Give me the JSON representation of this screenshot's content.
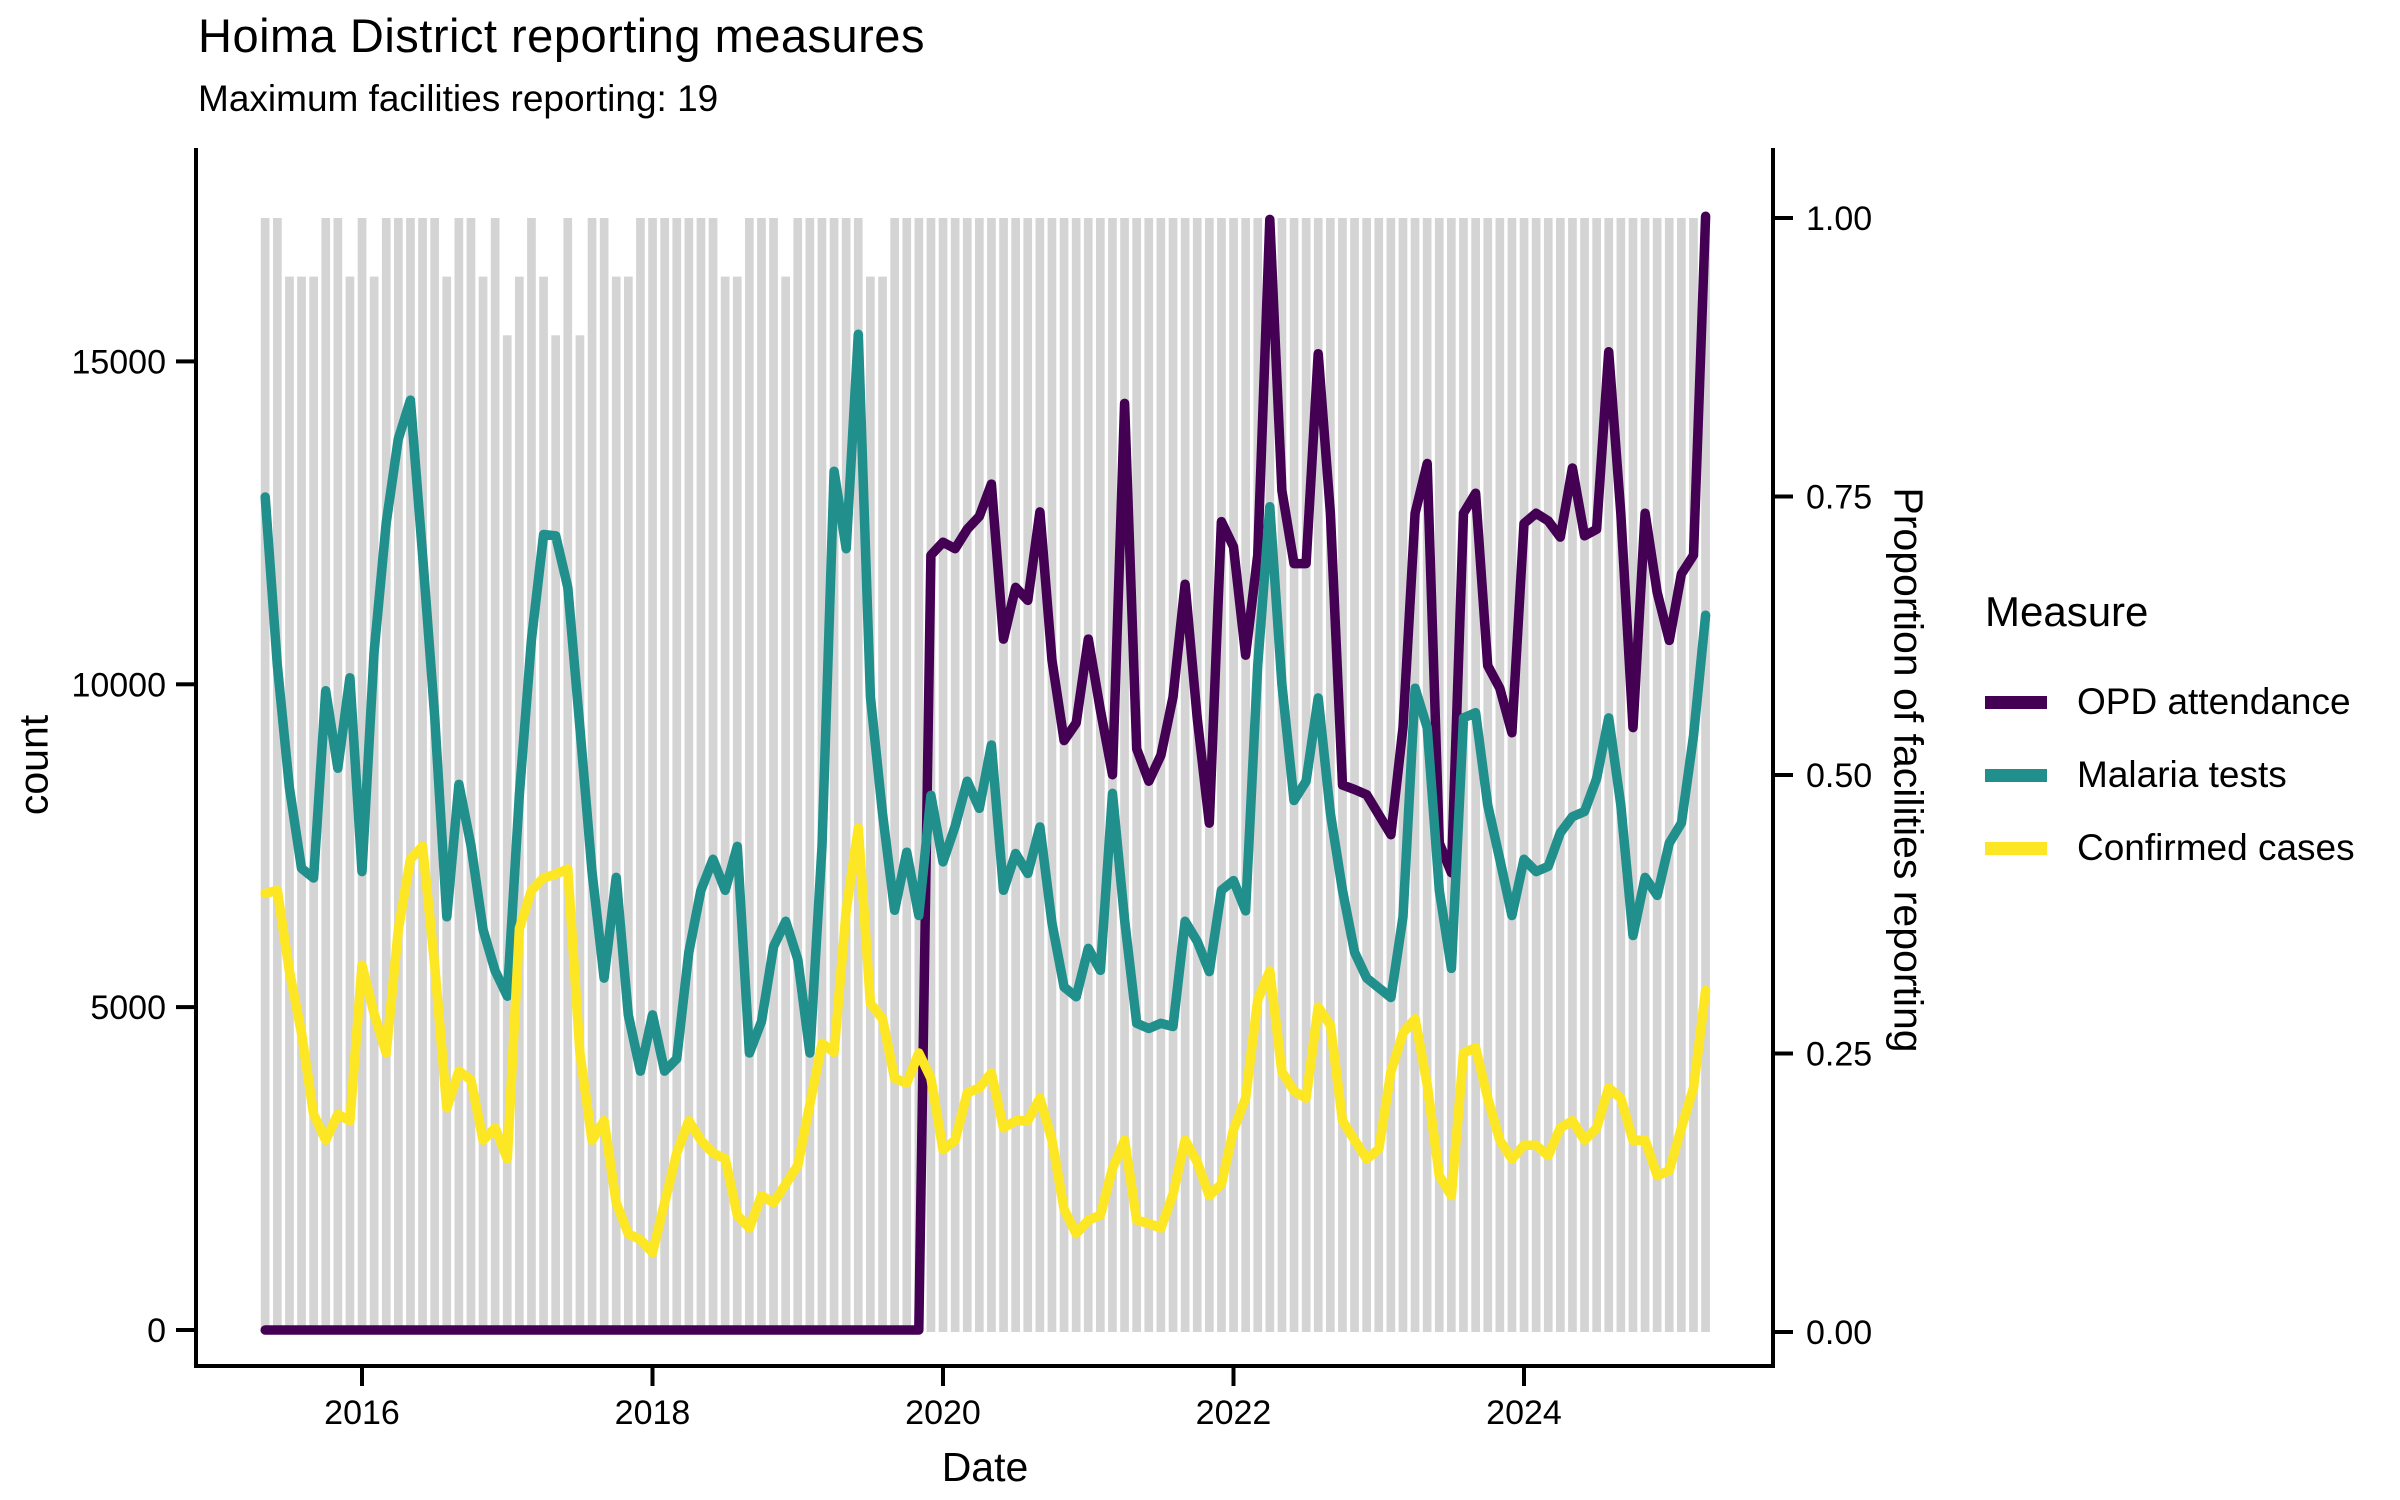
{
  "title": "Hoima District reporting measures",
  "subtitle": "Maximum facilities reporting: 19",
  "axes": {
    "x": {
      "label": "Date",
      "tick_labels": [
        "2016",
        "2018",
        "2020",
        "2022",
        "2024"
      ],
      "tick_month_index": [
        8,
        32,
        56,
        80,
        104
      ]
    },
    "y_left": {
      "label": "count",
      "tick_values": [
        0,
        5000,
        10000,
        15000
      ],
      "tick_labels": [
        "0",
        "5000",
        "10000",
        "15000"
      ]
    },
    "y_right": {
      "label": "Proportion of facilities reporting",
      "tick_values": [
        0,
        0.25,
        0.5,
        0.75,
        1
      ],
      "tick_labels": [
        "0.00",
        "0.25",
        "0.50",
        "0.75",
        "1.00"
      ]
    }
  },
  "legend": {
    "title": "Measure",
    "items": [
      {
        "label": "OPD attendance",
        "color": "#440154"
      },
      {
        "label": "Malaria tests",
        "color": "#21908C"
      },
      {
        "label": "Confirmed cases",
        "color": "#FDE725"
      }
    ]
  },
  "chart_data": {
    "type": "line",
    "title": "Hoima District reporting measures",
    "subtitle": "Maximum facilities reporting: 19",
    "xlabel": "Date",
    "ylabel_left": "count",
    "ylabel_right": "Proportion of facilities reporting",
    "x_start_month": "2015-05",
    "x_end_month": "2025-04",
    "months": [
      "2015-05",
      "2015-06",
      "2015-07",
      "2015-08",
      "2015-09",
      "2015-10",
      "2015-11",
      "2015-12",
      "2016-01",
      "2016-02",
      "2016-03",
      "2016-04",
      "2016-05",
      "2016-06",
      "2016-07",
      "2016-08",
      "2016-09",
      "2016-10",
      "2016-11",
      "2016-12",
      "2017-01",
      "2017-02",
      "2017-03",
      "2017-04",
      "2017-05",
      "2017-06",
      "2017-07",
      "2017-08",
      "2017-09",
      "2017-10",
      "2017-11",
      "2017-12",
      "2018-01",
      "2018-02",
      "2018-03",
      "2018-04",
      "2018-05",
      "2018-06",
      "2018-07",
      "2018-08",
      "2018-09",
      "2018-10",
      "2018-11",
      "2018-12",
      "2019-01",
      "2019-02",
      "2019-03",
      "2019-04",
      "2019-05",
      "2019-06",
      "2019-07",
      "2019-08",
      "2019-09",
      "2019-10",
      "2019-11",
      "2019-12",
      "2020-01",
      "2020-02",
      "2020-03",
      "2020-04",
      "2020-05",
      "2020-06",
      "2020-07",
      "2020-08",
      "2020-09",
      "2020-10",
      "2020-11",
      "2020-12",
      "2021-01",
      "2021-02",
      "2021-03",
      "2021-04",
      "2021-05",
      "2021-06",
      "2021-07",
      "2021-08",
      "2021-09",
      "2021-10",
      "2021-11",
      "2021-12",
      "2022-01",
      "2022-02",
      "2022-03",
      "2022-04",
      "2022-05",
      "2022-06",
      "2022-07",
      "2022-08",
      "2022-09",
      "2022-10",
      "2022-11",
      "2022-12",
      "2023-01",
      "2023-02",
      "2023-03",
      "2023-04",
      "2023-05",
      "2023-06",
      "2023-07",
      "2023-08",
      "2023-09",
      "2023-10",
      "2023-11",
      "2023-12",
      "2024-01",
      "2024-02",
      "2024-03",
      "2024-04",
      "2024-05",
      "2024-06",
      "2024-07",
      "2024-08",
      "2024-09",
      "2024-10",
      "2024-11",
      "2024-12",
      "2025-01",
      "2025-02",
      "2025-03",
      "2025-04"
    ],
    "max_facilities": 19,
    "bar_color": "#D4D4D4",
    "facilities_reporting": [
      19,
      19,
      18,
      18,
      18,
      19,
      19,
      18,
      19,
      18,
      19,
      19,
      19,
      19,
      19,
      18,
      19,
      19,
      18,
      19,
      17,
      18,
      19,
      18,
      17,
      19,
      17,
      19,
      19,
      18,
      18,
      19,
      19,
      19,
      19,
      19,
      19,
      19,
      18,
      18,
      19,
      19,
      19,
      18,
      19,
      19,
      19,
      19,
      19,
      19,
      18,
      18,
      19,
      19,
      19,
      19,
      19,
      19,
      19,
      19,
      19,
      19,
      19,
      19,
      19,
      19,
      19,
      19,
      19,
      19,
      19,
      19,
      19,
      19,
      19,
      19,
      19,
      19,
      19,
      19,
      19,
      19,
      19,
      19,
      19,
      19,
      19,
      19,
      19,
      19,
      19,
      19,
      19,
      19,
      19,
      19,
      19,
      19,
      19,
      19,
      19,
      19,
      19,
      19,
      19,
      19,
      19,
      19,
      19,
      19,
      19,
      19,
      19,
      19,
      19,
      19,
      19,
      19,
      19,
      19
    ],
    "series": [
      {
        "name": "OPD attendance",
        "color": "#440154",
        "y_axis": "count",
        "values": [
          0,
          0,
          0,
          0,
          0,
          0,
          0,
          0,
          0,
          0,
          0,
          0,
          0,
          0,
          0,
          0,
          0,
          0,
          0,
          0,
          0,
          0,
          0,
          0,
          0,
          0,
          0,
          0,
          0,
          0,
          0,
          0,
          0,
          0,
          0,
          0,
          0,
          0,
          0,
          0,
          0,
          0,
          0,
          0,
          0,
          0,
          0,
          0,
          0,
          0,
          0,
          0,
          0,
          0,
          0,
          12000,
          12200,
          12100,
          12400,
          12600,
          13100,
          10700,
          11500,
          11300,
          12670,
          10370,
          9130,
          9400,
          10700,
          9600,
          8600,
          14350,
          9000,
          8500,
          8900,
          9800,
          11550,
          9480,
          7850,
          12520,
          12130,
          10450,
          12000,
          17200,
          13000,
          11870,
          11870,
          15120,
          12650,
          8440,
          8370,
          8290,
          7980,
          7670,
          9330,
          12650,
          13420,
          7540,
          7080,
          12650,
          12960,
          10290,
          9940,
          9250,
          12490,
          12650,
          12530,
          12280,
          13350,
          12300,
          12400,
          15150,
          12650,
          9330,
          12650,
          11420,
          10680,
          11710,
          12000,
          17250
        ]
      },
      {
        "name": "Malaria tests",
        "color": "#21908C",
        "y_axis": "count",
        "values": [
          12900,
          10300,
          8400,
          7150,
          7000,
          9900,
          8700,
          10100,
          7100,
          10500,
          12500,
          13800,
          14400,
          12000,
          9500,
          6400,
          8450,
          7500,
          6200,
          5560,
          5170,
          8300,
          10700,
          12320,
          12300,
          11500,
          9330,
          7100,
          5450,
          7010,
          4880,
          4010,
          4880,
          4010,
          4200,
          5850,
          6810,
          7290,
          6810,
          7490,
          4290,
          4780,
          5940,
          6330,
          5740,
          4290,
          7490,
          13300,
          12100,
          15420,
          9810,
          8000,
          6500,
          7400,
          6420,
          8280,
          7250,
          7800,
          8500,
          8080,
          9060,
          6810,
          7380,
          7070,
          7790,
          6300,
          5310,
          5160,
          5910,
          5570,
          8310,
          6350,
          4750,
          4670,
          4750,
          4700,
          6330,
          6020,
          5550,
          6810,
          6960,
          6490,
          10290,
          12750,
          10000,
          8200,
          8500,
          9790,
          8000,
          6810,
          5850,
          5450,
          5300,
          5150,
          6400,
          9940,
          9330,
          6810,
          5600,
          9480,
          9560,
          8130,
          7290,
          6420,
          7290,
          7100,
          7180,
          7700,
          7950,
          8030,
          8540,
          9480,
          8130,
          6110,
          7010,
          6730,
          7540,
          7850,
          9200,
          11070
        ]
      },
      {
        "name": "Confirmed cases",
        "color": "#FDE725",
        "y_axis": "count",
        "values": [
          6760,
          6810,
          5560,
          4600,
          3340,
          2940,
          3340,
          3240,
          5650,
          4900,
          4290,
          6200,
          7290,
          7490,
          5650,
          3440,
          4010,
          3870,
          2940,
          3130,
          2650,
          6220,
          6810,
          7000,
          7060,
          7140,
          4290,
          2940,
          3240,
          1970,
          1490,
          1400,
          1200,
          1970,
          2740,
          3240,
          2940,
          2740,
          2650,
          1780,
          1580,
          2080,
          1970,
          2260,
          2550,
          3500,
          4440,
          4300,
          6500,
          7770,
          5060,
          4820,
          3900,
          3820,
          4290,
          3900,
          2790,
          2940,
          3670,
          3750,
          3980,
          3130,
          3240,
          3240,
          3590,
          2940,
          1870,
          1490,
          1700,
          1780,
          2500,
          2940,
          1700,
          1650,
          1580,
          2100,
          2940,
          2600,
          2080,
          2260,
          3100,
          3590,
          5110,
          5560,
          4000,
          3700,
          3590,
          5000,
          4720,
          3240,
          2940,
          2650,
          2800,
          4000,
          4600,
          4820,
          3800,
          2390,
          2080,
          4290,
          4370,
          3590,
          2940,
          2650,
          2860,
          2860,
          2700,
          3130,
          3240,
          2940,
          3130,
          3750,
          3590,
          2940,
          2940,
          2390,
          2470,
          3130,
          3750,
          5260
        ]
      }
    ],
    "bars_series": {
      "name": "Proportion of facilities reporting",
      "y_axis": "proportion",
      "note": "bar height = facilities_reporting / 19"
    },
    "ylim_count": [
      0,
      17400
    ],
    "ylim_proportion": [
      0,
      1
    ],
    "grid": "off",
    "legend_position": "right"
  }
}
